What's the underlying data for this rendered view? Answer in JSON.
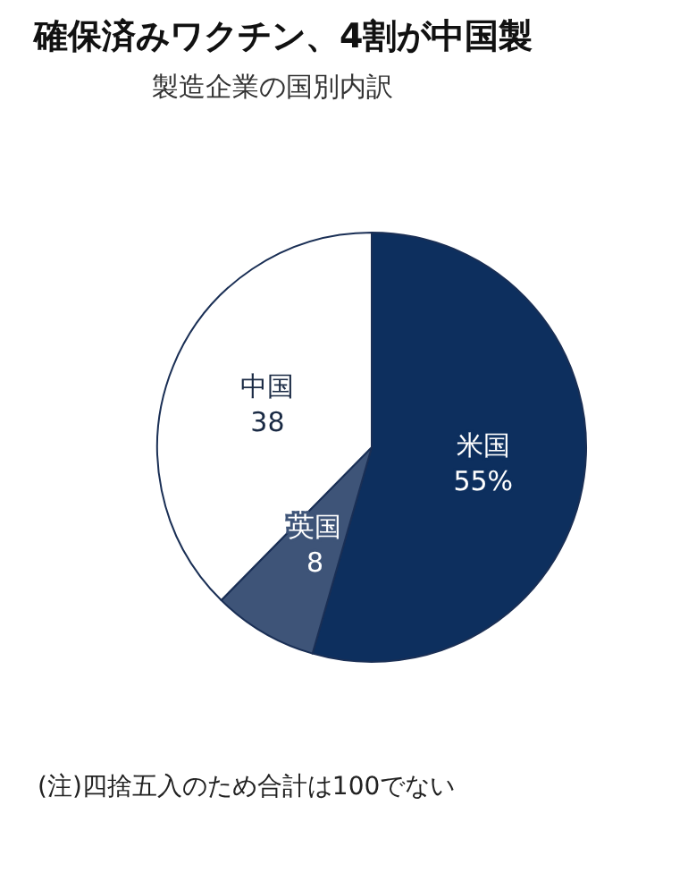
{
  "chart_data": {
    "type": "pie",
    "title": "確保済みワクチン、4割が中国製",
    "subtitle": "製造企業の国別内訳",
    "categories": [
      "米国",
      "英国",
      "中国"
    ],
    "values": [
      55,
      8,
      38
    ],
    "colors": [
      "#0d2f5e",
      "#3e5478",
      "#ffffff"
    ],
    "value_labels": [
      "55%",
      "8",
      "38"
    ],
    "annotations": [
      "(注)四捨五入のため合計は100でない"
    ],
    "legend": false
  }
}
